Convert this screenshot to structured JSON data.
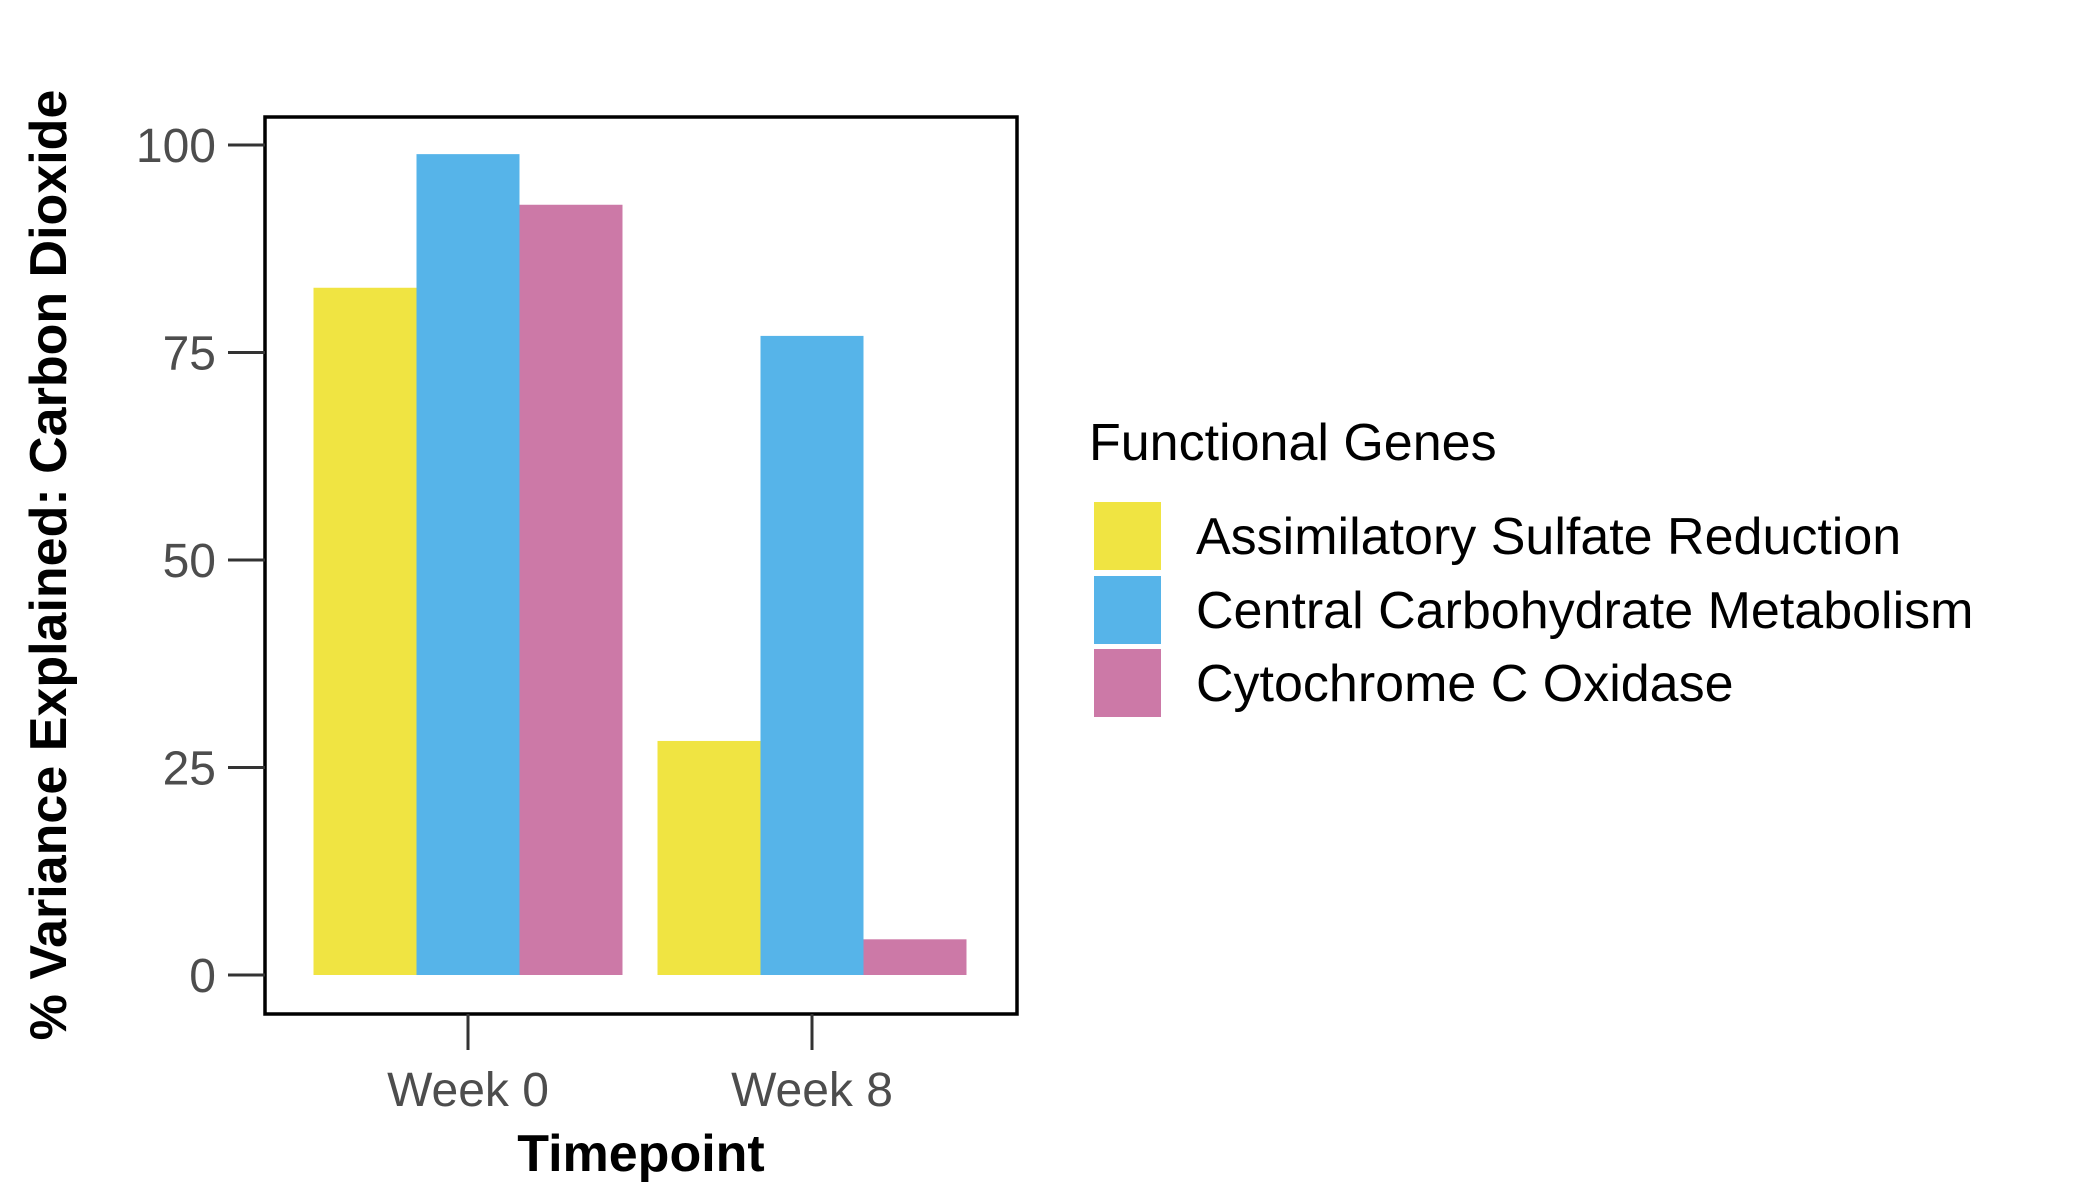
{
  "chart_data": {
    "type": "bar",
    "categories": [
      "Week 0",
      "Week 8"
    ],
    "series": [
      {
        "name": "Assimilatory Sulfate Reduction",
        "values": [
          82.8,
          28.2
        ],
        "color": "#f0e442"
      },
      {
        "name": "Central Carbohydrate Metabolism",
        "values": [
          98.9,
          77.0
        ],
        "color": "#56b4e9"
      },
      {
        "name": "Cytochrome C Oxidase",
        "values": [
          92.8,
          4.3
        ],
        "color": "#cc79a7"
      }
    ],
    "title": "",
    "xlabel": "Timepoint",
    "ylabel": "% Variance Explained: Carbon Dioxide",
    "ylim": [
      0,
      100
    ],
    "yticks": [
      0,
      25,
      50,
      75,
      100
    ],
    "grid": false,
    "legend": {
      "title": "Functional Genes",
      "position": "right"
    }
  }
}
